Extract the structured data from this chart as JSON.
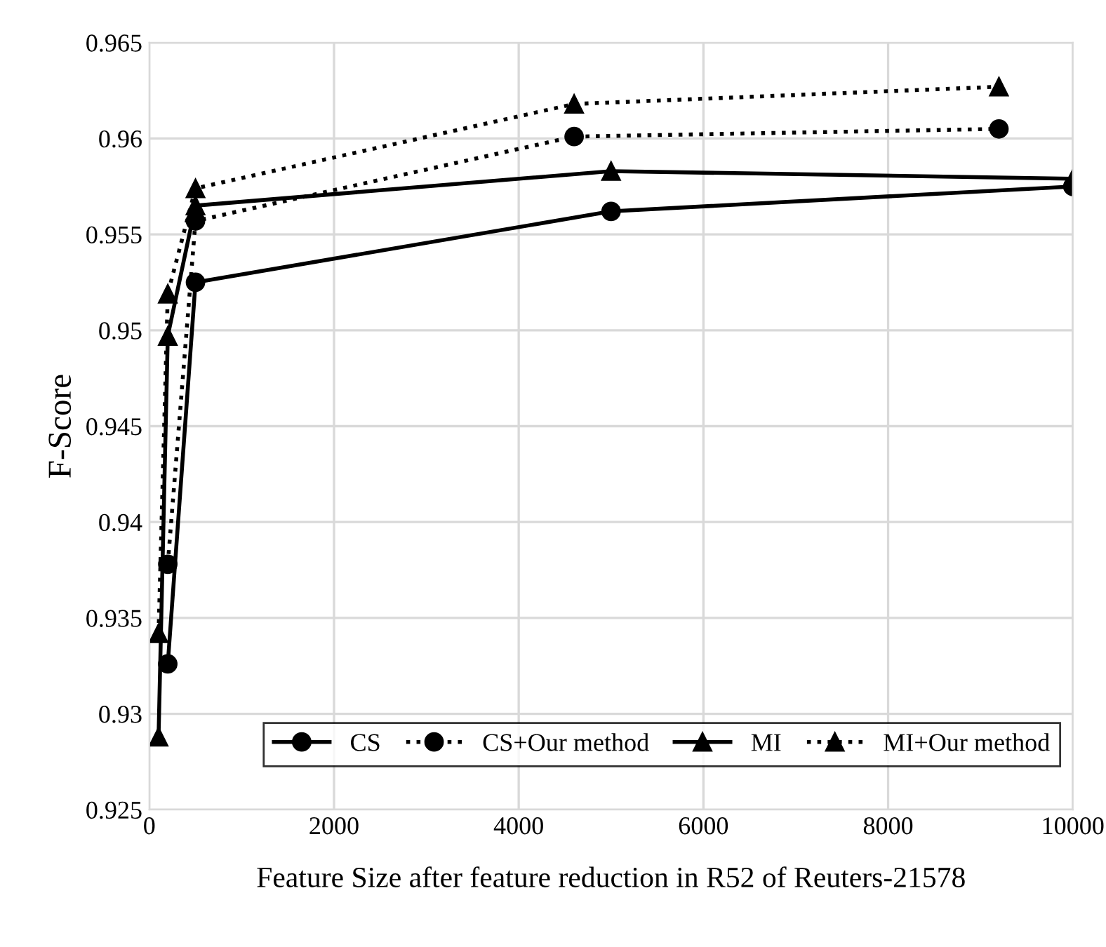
{
  "chart_data": {
    "type": "line",
    "xlabel": "Feature Size after feature reduction in R52 of Reuters-21578",
    "ylabel": "F-Score",
    "xlim": [
      0,
      10000
    ],
    "xticks": [
      0,
      2000,
      4000,
      6000,
      8000,
      10000
    ],
    "ylim": [
      0.925,
      0.965
    ],
    "yticks": [
      0.925,
      0.93,
      0.935,
      0.94,
      0.945,
      0.95,
      0.955,
      0.96,
      0.965
    ],
    "grid": true,
    "legend": "bottom right",
    "series": [
      {
        "name": "CS",
        "color": "#000000",
        "marker": "circle",
        "line_style": "solid",
        "x": [
          200,
          500,
          5000,
          10000
        ],
        "values": [
          0.9326,
          0.9525,
          0.9562,
          0.9575
        ]
      },
      {
        "name": "CS+Our method",
        "color": "#000000",
        "marker": "circle",
        "line_style": "dotted",
        "x": [
          200,
          500,
          4600,
          9200
        ],
        "values": [
          0.9378,
          0.9557,
          0.9601,
          0.9605
        ]
      },
      {
        "name": "MI",
        "color": "#000000",
        "marker": "triangle",
        "line_style": "solid",
        "x": [
          100,
          200,
          500,
          5000,
          10000
        ],
        "values": [
          0.9288,
          0.9497,
          0.9565,
          0.9583,
          0.9579
        ]
      },
      {
        "name": "MI+Our method",
        "color": "#000000",
        "marker": "triangle",
        "line_style": "dotted",
        "x": [
          100,
          200,
          500,
          4600,
          9200
        ],
        "values": [
          0.9342,
          0.9519,
          0.9574,
          0.9618,
          0.9627
        ]
      }
    ]
  }
}
